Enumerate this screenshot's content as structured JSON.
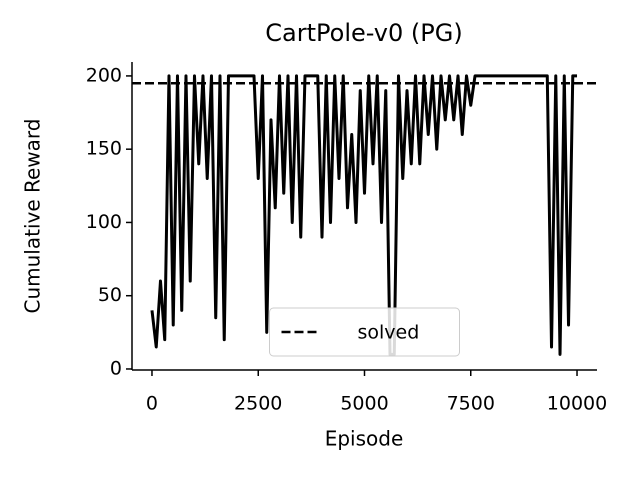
{
  "chart_data": {
    "type": "line",
    "title": "CartPole-v0 (PG)",
    "xlabel": "Episode",
    "ylabel": "Cumulative Reward",
    "x": [
      0,
      100,
      200,
      300,
      400,
      500,
      600,
      700,
      800,
      900,
      1000,
      1100,
      1200,
      1300,
      1400,
      1500,
      1600,
      1700,
      1800,
      1900,
      2000,
      2100,
      2200,
      2300,
      2400,
      2500,
      2600,
      2700,
      2800,
      2900,
      3000,
      3100,
      3200,
      3300,
      3400,
      3500,
      3600,
      3700,
      3800,
      3900,
      4000,
      4100,
      4200,
      4300,
      4400,
      4500,
      4600,
      4700,
      4800,
      4900,
      5000,
      5100,
      5200,
      5300,
      5400,
      5500,
      5600,
      5700,
      5800,
      5900,
      6000,
      6100,
      6200,
      6300,
      6400,
      6500,
      6600,
      6700,
      6800,
      6900,
      7000,
      7100,
      7200,
      7300,
      7400,
      7500,
      7600,
      7700,
      7800,
      7900,
      8000,
      8100,
      8200,
      8300,
      8400,
      8500,
      8600,
      8700,
      8800,
      8900,
      9000,
      9100,
      9200,
      9300,
      9400,
      9500,
      9600,
      9700,
      9800,
      9900,
      10000
    ],
    "values": [
      40,
      15,
      60,
      20,
      200,
      30,
      200,
      40,
      200,
      60,
      200,
      140,
      200,
      130,
      200,
      35,
      200,
      20,
      200,
      200,
      200,
      200,
      200,
      200,
      200,
      130,
      200,
      25,
      170,
      110,
      200,
      120,
      200,
      100,
      200,
      90,
      200,
      200,
      200,
      200,
      90,
      200,
      100,
      200,
      130,
      200,
      110,
      160,
      100,
      190,
      120,
      200,
      140,
      200,
      100,
      190,
      10,
      10,
      200,
      130,
      190,
      140,
      200,
      140,
      200,
      160,
      200,
      150,
      200,
      170,
      200,
      170,
      200,
      160,
      200,
      180,
      200,
      200,
      200,
      200,
      200,
      200,
      200,
      200,
      200,
      200,
      200,
      200,
      200,
      200,
      200,
      200,
      200,
      200,
      15,
      200,
      10,
      200,
      30,
      200,
      200
    ],
    "color": "#000000",
    "threshold": {
      "name": "solved",
      "value": 195,
      "color": "#000000"
    },
    "xlim": [
      -470,
      10470
    ],
    "ylim": [
      -0.7,
      209.5
    ],
    "xticks": [
      0,
      2500,
      5000,
      7500,
      10000
    ],
    "yticks": [
      0,
      50,
      100,
      150,
      200
    ],
    "legend": "lower center"
  }
}
